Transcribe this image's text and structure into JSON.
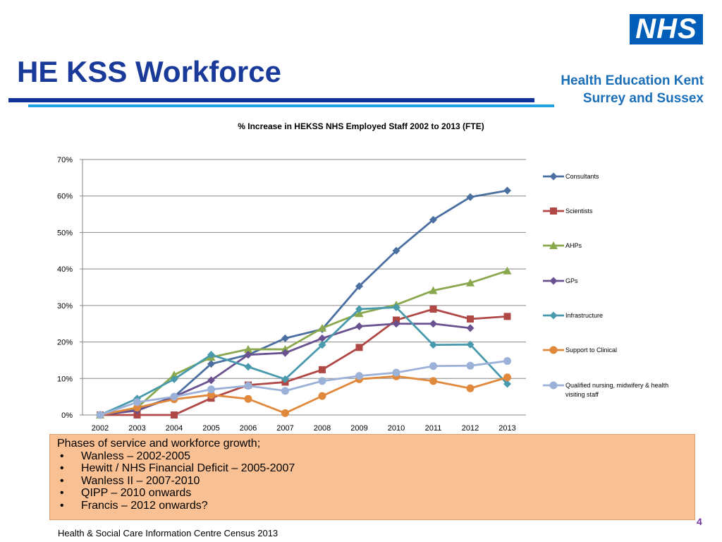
{
  "header": {
    "title": "HE KSS Workforce",
    "logo_text": "NHS",
    "org_line1": "Health Education Kent",
    "org_line2": "Surrey and Sussex"
  },
  "chart_data": {
    "type": "line",
    "title": "% Increase in HEKSS NHS Employed Staff 2002 to 2013 (FTE)",
    "x": [
      "2002",
      "2003",
      "2004",
      "2005",
      "2006",
      "2007",
      "2008",
      "2009",
      "2010",
      "2011",
      "2012",
      "2013"
    ],
    "yticks": [
      "0%",
      "10%",
      "20%",
      "30%",
      "40%",
      "50%",
      "60%",
      "70%"
    ],
    "ylim": [
      0,
      70
    ],
    "grid": true,
    "legend_position": "right",
    "series": [
      {
        "name": "Consultants",
        "color": "#4a6fa0",
        "marker": "diamond",
        "values": [
          0,
          1.5,
          5,
          14,
          16.5,
          21,
          23.5,
          35.3,
          45,
          53.5,
          59.7,
          61.5
        ]
      },
      {
        "name": "Scientists",
        "color": "#b04845",
        "marker": "square",
        "values": [
          0,
          0,
          0,
          4.6,
          8.2,
          9,
          12.4,
          18.5,
          26,
          29,
          26.3,
          27
        ]
      },
      {
        "name": "AHPs",
        "color": "#8aa84e",
        "marker": "triangle",
        "values": [
          0,
          2,
          11,
          15.8,
          18,
          18,
          23.8,
          27.8,
          30.2,
          34.1,
          36.2,
          39.5
        ]
      },
      {
        "name": "GPs",
        "color": "#6a5190",
        "marker": "diamond",
        "values": [
          0,
          1.2,
          5,
          9.5,
          16.5,
          17,
          21,
          24.3,
          25,
          25,
          23.8,
          null
        ]
      },
      {
        "name": "Infrastructure",
        "color": "#4a9aad",
        "marker": "diamond",
        "values": [
          0,
          4.5,
          9.8,
          16.5,
          13.2,
          9.8,
          19.2,
          29,
          29.5,
          19.2,
          19.3,
          8.5
        ]
      },
      {
        "name": "Support to Clinical",
        "color": "#e0893c",
        "marker": "circle",
        "values": [
          0,
          2,
          4.3,
          5.5,
          4.4,
          0.5,
          5.2,
          9.8,
          10.6,
          9.3,
          7.3,
          10.3
        ]
      },
      {
        "name": "Qualified nursing, midwifery & health visiting staff",
        "color": "#9cb1d8",
        "marker": "circle",
        "values": [
          0,
          3.5,
          5,
          7,
          8,
          6.6,
          9.3,
          10.7,
          11.6,
          13.4,
          13.5,
          14.8
        ]
      }
    ]
  },
  "phases": {
    "heading": "Phases of service and workforce growth;",
    "items": [
      "Wanless – 2002-2005",
      "Hewitt / NHS Financial Deficit – 2005-2007",
      "Wanless II – 2007-2010",
      "QIPP  – 2010 onwards",
      "Francis – 2012 onwards?"
    ],
    "bullet": "•"
  },
  "footer": {
    "page_number": "4",
    "source": "Health & Social Care Information Centre Census 2013"
  }
}
